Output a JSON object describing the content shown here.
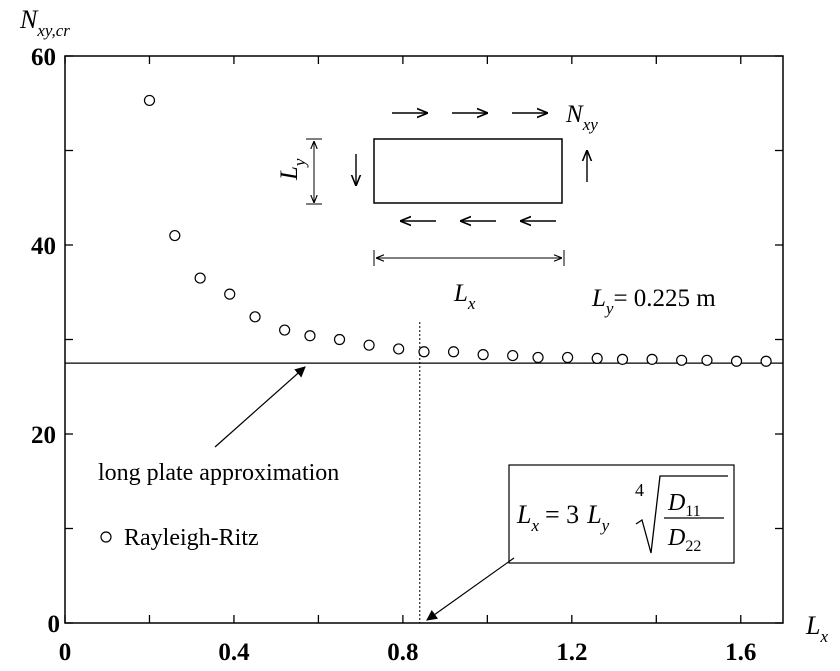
{
  "chart_data": {
    "type": "scatter",
    "title": "",
    "ylabel": {
      "main": "N",
      "sub": "xy,cr"
    },
    "xlabel": {
      "main": "L",
      "sub": "x"
    },
    "xlim": [
      0,
      1.7
    ],
    "ylim": [
      0,
      60
    ],
    "x_ticks": [
      0,
      0.4,
      0.8,
      1.2,
      1.6
    ],
    "x_tick_labels": [
      "0",
      "0.4",
      "0.8",
      "1.2",
      "1.6"
    ],
    "y_ticks": [
      0,
      20,
      40,
      60
    ],
    "y_tick_labels": [
      "0",
      "20",
      "40",
      "60"
    ],
    "grid": false,
    "series": [
      {
        "name": "Rayleigh-Ritz",
        "marker": "open-circle",
        "x": [
          0.2,
          0.26,
          0.32,
          0.39,
          0.45,
          0.52,
          0.58,
          0.65,
          0.72,
          0.79,
          0.85,
          0.92,
          0.99,
          1.06,
          1.12,
          1.19,
          1.26,
          1.32,
          1.39,
          1.46,
          1.52,
          1.59,
          1.66
        ],
        "y": [
          55.3,
          41.0,
          36.5,
          34.8,
          32.4,
          31.0,
          30.4,
          30.0,
          29.4,
          29.0,
          28.7,
          28.7,
          28.4,
          28.3,
          28.1,
          28.1,
          28.0,
          27.9,
          27.9,
          27.8,
          27.8,
          27.7,
          27.7
        ]
      }
    ],
    "hline": {
      "y": 27.5,
      "label": "long plate approximation"
    },
    "vline": {
      "x": 0.84
    },
    "annotations": {
      "ly_value": {
        "main": "L",
        "sub": "y",
        "rest": "= 0.225 m"
      },
      "formula": {
        "lhs_main": "L",
        "lhs_sub": "x",
        "eq": "= 3",
        "coef_main": "L",
        "coef_sub": "y",
        "root_index": "4",
        "num_main": "D",
        "num_sub": "11",
        "den_main": "D",
        "den_sub": "22"
      },
      "inset": {
        "nxy_main": "N",
        "nxy_sub": "xy",
        "lx_main": "L",
        "lx_sub": "x",
        "ly_main": "L",
        "ly_sub": "y"
      }
    },
    "legend": {
      "label": "Rayleigh-Ritz",
      "position": "lower-left"
    }
  }
}
